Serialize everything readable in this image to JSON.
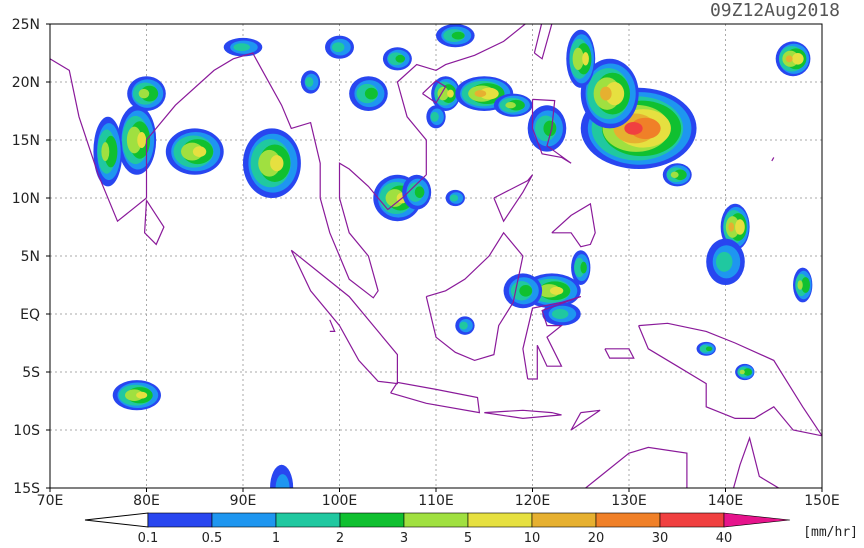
{
  "header": {
    "title": "09Z12Aug2018"
  },
  "axes": {
    "lat_labels": [
      "25N",
      "20N",
      "15N",
      "10N",
      "5N",
      "EQ",
      "5S",
      "10S",
      "15S"
    ],
    "lon_labels": [
      "70E",
      "80E",
      "90E",
      "100E",
      "110E",
      "120E",
      "130E",
      "140E",
      "150E"
    ]
  },
  "colorbar": {
    "labels": [
      "0.1",
      "0.5",
      "1",
      "2",
      "3",
      "5",
      "10",
      "20",
      "30",
      "40"
    ],
    "colors": [
      "#2846f0",
      "#1e96f0",
      "#20c8a0",
      "#10c030",
      "#a0e040",
      "#e6e040",
      "#e6b030",
      "#f08028",
      "#f04040",
      "#e6148c"
    ],
    "unit": "[mm/hr]"
  }
}
